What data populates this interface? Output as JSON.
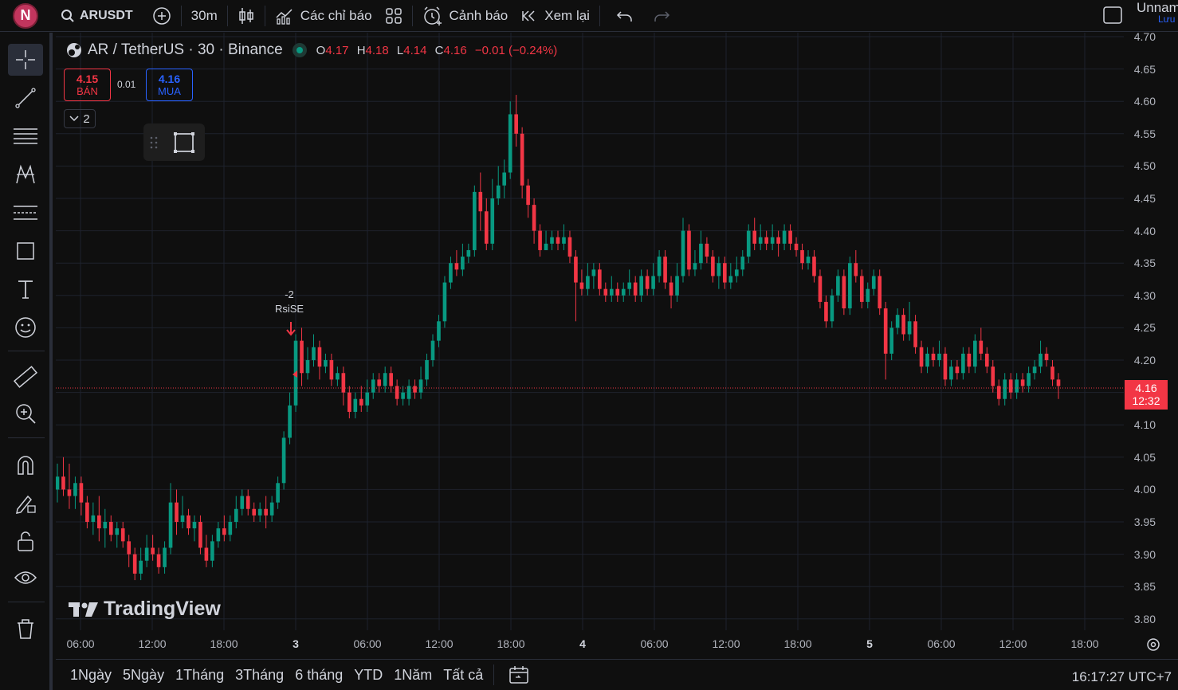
{
  "topbar": {
    "avatar_letter": "N",
    "symbol": "ARUSDT",
    "interval": "30m",
    "indicators_label": "Các chỉ báo",
    "alerts_label": "Cảnh báo",
    "replay_label": "Xem lại",
    "layout_name": "Unnam",
    "save_label": "Lưu"
  },
  "legend": {
    "title": "AR / TetherUS · 30 · Binance",
    "o_label": "O",
    "o_val": "4.17",
    "h_label": "H",
    "h_val": "4.18",
    "l_label": "L",
    "l_val": "4.14",
    "c_label": "C",
    "c_val": "4.16",
    "change": "−0.01 (−0.24%)"
  },
  "trade": {
    "sell_price": "4.15",
    "sell_label": "BÁN",
    "spread": "0.01",
    "buy_price": "4.16",
    "buy_label": "MUA",
    "collapse_count": "2"
  },
  "signal": {
    "line1": "-2",
    "line2": "RsiSE"
  },
  "watermark": "TradingView",
  "price_axis": [
    "4.70",
    "4.65",
    "4.60",
    "4.55",
    "4.50",
    "4.45",
    "4.40",
    "4.35",
    "4.30",
    "4.25",
    "4.20",
    "4.15",
    "4.10",
    "4.05",
    "4.00",
    "3.95",
    "3.90",
    "3.85",
    "3.80"
  ],
  "time_axis": [
    {
      "label": "06:00",
      "bold": false
    },
    {
      "label": "12:00",
      "bold": false
    },
    {
      "label": "18:00",
      "bold": false
    },
    {
      "label": "3",
      "bold": true
    },
    {
      "label": "06:00",
      "bold": false
    },
    {
      "label": "12:00",
      "bold": false
    },
    {
      "label": "18:00",
      "bold": false
    },
    {
      "label": "4",
      "bold": true
    },
    {
      "label": "06:00",
      "bold": false
    },
    {
      "label": "12:00",
      "bold": false
    },
    {
      "label": "18:00",
      "bold": false
    },
    {
      "label": "5",
      "bold": true
    },
    {
      "label": "06:00",
      "bold": false
    },
    {
      "label": "12:00",
      "bold": false
    },
    {
      "label": "18:00",
      "bold": false
    }
  ],
  "last_price": {
    "price": "4.16",
    "countdown": "12:32"
  },
  "ranges": [
    "1Ngày",
    "5Ngày",
    "1Tháng",
    "3Tháng",
    "6 tháng",
    "YTD",
    "1Năm",
    "Tất cả"
  ],
  "clock": "16:17:27 UTC+7",
  "colors": {
    "up": "#089981",
    "down": "#f23645",
    "grid": "#1e222d",
    "background": "#0f0f0f"
  },
  "chart_data": {
    "type": "candlestick",
    "symbol": "AR / TetherUS",
    "interval": "30",
    "exchange": "Binance",
    "ylim": [
      3.8,
      4.7
    ],
    "candles": [
      [
        4.0,
        4.02,
        4.04,
        3.98
      ],
      [
        4.02,
        4.0,
        4.05,
        3.99
      ],
      [
        4.0,
        3.99,
        4.04,
        3.97
      ],
      [
        3.99,
        4.01,
        4.02,
        3.97
      ],
      [
        4.01,
        3.98,
        4.02,
        3.96
      ],
      [
        3.98,
        3.95,
        3.99,
        3.94
      ],
      [
        3.95,
        3.96,
        3.98,
        3.93
      ],
      [
        3.96,
        3.94,
        3.99,
        3.92
      ],
      [
        3.94,
        3.95,
        3.97,
        3.91
      ],
      [
        3.95,
        3.93,
        3.96,
        3.92
      ],
      [
        3.93,
        3.94,
        3.95,
        3.91
      ],
      [
        3.94,
        3.92,
        3.95,
        3.91
      ],
      [
        3.92,
        3.9,
        3.93,
        3.88
      ],
      [
        3.9,
        3.87,
        3.91,
        3.86
      ],
      [
        3.87,
        3.89,
        3.91,
        3.86
      ],
      [
        3.89,
        3.91,
        3.93,
        3.88
      ],
      [
        3.91,
        3.9,
        3.93,
        3.89
      ],
      [
        3.9,
        3.88,
        3.91,
        3.87
      ],
      [
        3.88,
        3.91,
        3.92,
        3.87
      ],
      [
        3.91,
        3.98,
        4.01,
        3.9
      ],
      [
        3.98,
        3.95,
        4.0,
        3.93
      ],
      [
        3.95,
        3.96,
        3.99,
        3.94
      ],
      [
        3.96,
        3.94,
        3.97,
        3.93
      ],
      [
        3.94,
        3.95,
        3.96,
        3.92
      ],
      [
        3.95,
        3.91,
        3.96,
        3.9
      ],
      [
        3.91,
        3.89,
        3.93,
        3.88
      ],
      [
        3.89,
        3.92,
        3.93,
        3.88
      ],
      [
        3.92,
        3.94,
        3.95,
        3.91
      ],
      [
        3.94,
        3.93,
        3.96,
        3.92
      ],
      [
        3.93,
        3.95,
        3.96,
        3.92
      ],
      [
        3.95,
        3.97,
        3.99,
        3.94
      ],
      [
        3.97,
        3.99,
        4.0,
        3.96
      ],
      [
        3.99,
        3.97,
        4.0,
        3.96
      ],
      [
        3.97,
        3.96,
        3.98,
        3.95
      ],
      [
        3.96,
        3.97,
        3.98,
        3.95
      ],
      [
        3.97,
        3.96,
        3.99,
        3.94
      ],
      [
        3.96,
        3.98,
        3.99,
        3.95
      ],
      [
        3.98,
        4.01,
        4.02,
        3.97
      ],
      [
        4.01,
        4.08,
        4.09,
        4.0
      ],
      [
        4.08,
        4.13,
        4.15,
        4.07
      ],
      [
        4.13,
        4.23,
        4.24,
        4.12
      ],
      [
        4.23,
        4.18,
        4.25,
        4.16
      ],
      [
        4.18,
        4.2,
        4.22,
        4.17
      ],
      [
        4.2,
        4.22,
        4.24,
        4.19
      ],
      [
        4.22,
        4.19,
        4.23,
        4.17
      ],
      [
        4.19,
        4.2,
        4.21,
        4.18
      ],
      [
        4.2,
        4.17,
        4.21,
        4.16
      ],
      [
        4.17,
        4.18,
        4.19,
        4.16
      ],
      [
        4.18,
        4.15,
        4.19,
        4.13
      ],
      [
        4.15,
        4.12,
        4.16,
        4.11
      ],
      [
        4.12,
        4.14,
        4.15,
        4.11
      ],
      [
        4.14,
        4.13,
        4.16,
        4.12
      ],
      [
        4.13,
        4.15,
        4.17,
        4.12
      ],
      [
        4.15,
        4.17,
        4.18,
        4.14
      ],
      [
        4.17,
        4.16,
        4.18,
        4.15
      ],
      [
        4.16,
        4.18,
        4.19,
        4.15
      ],
      [
        4.18,
        4.16,
        4.19,
        4.15
      ],
      [
        4.16,
        4.14,
        4.17,
        4.13
      ],
      [
        4.14,
        4.15,
        4.16,
        4.13
      ],
      [
        4.14,
        4.16,
        4.17,
        4.13
      ],
      [
        4.16,
        4.15,
        4.17,
        4.14
      ],
      [
        4.15,
        4.17,
        4.19,
        4.14
      ],
      [
        4.17,
        4.2,
        4.21,
        4.16
      ],
      [
        4.2,
        4.23,
        4.24,
        4.19
      ],
      [
        4.23,
        4.26,
        4.27,
        4.22
      ],
      [
        4.26,
        4.32,
        4.33,
        4.25
      ],
      [
        4.32,
        4.35,
        4.36,
        4.31
      ],
      [
        4.35,
        4.34,
        4.37,
        4.33
      ],
      [
        4.34,
        4.36,
        4.38,
        4.33
      ],
      [
        4.36,
        4.37,
        4.38,
        4.35
      ],
      [
        4.37,
        4.46,
        4.47,
        4.36
      ],
      [
        4.46,
        4.43,
        4.49,
        4.4
      ],
      [
        4.43,
        4.38,
        4.45,
        4.37
      ],
      [
        4.38,
        4.45,
        4.48,
        4.37
      ],
      [
        4.45,
        4.47,
        4.5,
        4.44
      ],
      [
        4.47,
        4.49,
        4.51,
        4.45
      ],
      [
        4.49,
        4.58,
        4.6,
        4.48
      ],
      [
        4.58,
        4.55,
        4.61,
        4.53
      ],
      [
        4.55,
        4.47,
        4.56,
        4.45
      ],
      [
        4.47,
        4.44,
        4.48,
        4.42
      ],
      [
        4.44,
        4.4,
        4.45,
        4.38
      ],
      [
        4.4,
        4.37,
        4.41,
        4.36
      ],
      [
        4.37,
        4.38,
        4.4,
        4.37
      ],
      [
        4.38,
        4.39,
        4.4,
        4.37
      ],
      [
        4.39,
        4.38,
        4.4,
        4.37
      ],
      [
        4.38,
        4.39,
        4.41,
        4.37
      ],
      [
        4.39,
        4.36,
        4.4,
        4.35
      ],
      [
        4.36,
        4.32,
        4.37,
        4.26
      ],
      [
        4.32,
        4.31,
        4.34,
        4.3
      ],
      [
        4.31,
        4.33,
        4.35,
        4.3
      ],
      [
        4.33,
        4.34,
        4.35,
        4.31
      ],
      [
        4.34,
        4.31,
        4.35,
        4.3
      ],
      [
        4.31,
        4.3,
        4.32,
        4.29
      ],
      [
        4.3,
        4.31,
        4.33,
        4.29
      ],
      [
        4.31,
        4.3,
        4.32,
        4.29
      ],
      [
        4.3,
        4.31,
        4.32,
        4.29
      ],
      [
        4.31,
        4.32,
        4.34,
        4.3
      ],
      [
        4.32,
        4.3,
        4.33,
        4.29
      ],
      [
        4.3,
        4.33,
        4.34,
        4.29
      ],
      [
        4.33,
        4.31,
        4.34,
        4.3
      ],
      [
        4.31,
        4.33,
        4.35,
        4.3
      ],
      [
        4.33,
        4.36,
        4.37,
        4.32
      ],
      [
        4.36,
        4.32,
        4.37,
        4.31
      ],
      [
        4.32,
        4.3,
        4.33,
        4.28
      ],
      [
        4.3,
        4.33,
        4.35,
        4.29
      ],
      [
        4.33,
        4.4,
        4.42,
        4.32
      ],
      [
        4.4,
        4.34,
        4.41,
        4.33
      ],
      [
        4.34,
        4.35,
        4.37,
        4.33
      ],
      [
        4.35,
        4.38,
        4.4,
        4.34
      ],
      [
        4.38,
        4.36,
        4.39,
        4.35
      ],
      [
        4.36,
        4.33,
        4.37,
        4.32
      ],
      [
        4.33,
        4.35,
        4.36,
        4.31
      ],
      [
        4.35,
        4.32,
        4.36,
        4.31
      ],
      [
        4.32,
        4.33,
        4.35,
        4.31
      ],
      [
        4.33,
        4.34,
        4.36,
        4.32
      ],
      [
        4.34,
        4.36,
        4.37,
        4.33
      ],
      [
        4.36,
        4.4,
        4.41,
        4.35
      ],
      [
        4.4,
        4.38,
        4.42,
        4.37
      ],
      [
        4.38,
        4.39,
        4.41,
        4.37
      ],
      [
        4.39,
        4.38,
        4.4,
        4.37
      ],
      [
        4.38,
        4.39,
        4.41,
        4.37
      ],
      [
        4.39,
        4.38,
        4.4,
        4.36
      ],
      [
        4.38,
        4.4,
        4.41,
        4.37
      ],
      [
        4.4,
        4.38,
        4.41,
        4.37
      ],
      [
        4.38,
        4.37,
        4.39,
        4.36
      ],
      [
        4.37,
        4.35,
        4.38,
        4.34
      ],
      [
        4.35,
        4.36,
        4.37,
        4.34
      ],
      [
        4.36,
        4.33,
        4.37,
        4.32
      ],
      [
        4.33,
        4.29,
        4.34,
        4.28
      ],
      [
        4.29,
        4.26,
        4.3,
        4.25
      ],
      [
        4.26,
        4.3,
        4.31,
        4.25
      ],
      [
        4.3,
        4.33,
        4.34,
        4.29
      ],
      [
        4.33,
        4.28,
        4.34,
        4.27
      ],
      [
        4.28,
        4.35,
        4.36,
        4.27
      ],
      [
        4.35,
        4.33,
        4.37,
        4.32
      ],
      [
        4.33,
        4.29,
        4.34,
        4.28
      ],
      [
        4.29,
        4.31,
        4.32,
        4.28
      ],
      [
        4.31,
        4.33,
        4.34,
        4.3
      ],
      [
        4.33,
        4.28,
        4.34,
        4.27
      ],
      [
        4.28,
        4.21,
        4.29,
        4.17
      ],
      [
        4.21,
        4.25,
        4.26,
        4.2
      ],
      [
        4.25,
        4.27,
        4.28,
        4.24
      ],
      [
        4.27,
        4.24,
        4.28,
        4.23
      ],
      [
        4.24,
        4.26,
        4.29,
        4.23
      ],
      [
        4.26,
        4.22,
        4.27,
        4.21
      ],
      [
        4.22,
        4.19,
        4.23,
        4.18
      ],
      [
        4.19,
        4.21,
        4.22,
        4.18
      ],
      [
        4.21,
        4.2,
        4.22,
        4.19
      ],
      [
        4.2,
        4.21,
        4.23,
        4.19
      ],
      [
        4.21,
        4.17,
        4.22,
        4.16
      ],
      [
        4.17,
        4.19,
        4.2,
        4.16
      ],
      [
        4.19,
        4.18,
        4.2,
        4.17
      ],
      [
        4.18,
        4.21,
        4.22,
        4.17
      ],
      [
        4.21,
        4.19,
        4.22,
        4.18
      ],
      [
        4.19,
        4.23,
        4.24,
        4.18
      ],
      [
        4.23,
        4.21,
        4.25,
        4.2
      ],
      [
        4.21,
        4.19,
        4.22,
        4.18
      ],
      [
        4.19,
        4.16,
        4.2,
        4.15
      ],
      [
        4.16,
        4.14,
        4.17,
        4.13
      ],
      [
        4.14,
        4.17,
        4.18,
        4.13
      ],
      [
        4.17,
        4.15,
        4.18,
        4.14
      ],
      [
        4.15,
        4.17,
        4.18,
        4.14
      ],
      [
        4.17,
        4.16,
        4.18,
        4.15
      ],
      [
        4.16,
        4.18,
        4.19,
        4.15
      ],
      [
        4.18,
        4.19,
        4.2,
        4.17
      ],
      [
        4.19,
        4.21,
        4.23,
        4.18
      ],
      [
        4.21,
        4.2,
        4.22,
        4.19
      ],
      [
        4.19,
        4.17,
        4.2,
        4.16
      ],
      [
        4.17,
        4.16,
        4.18,
        4.14
      ]
    ]
  }
}
